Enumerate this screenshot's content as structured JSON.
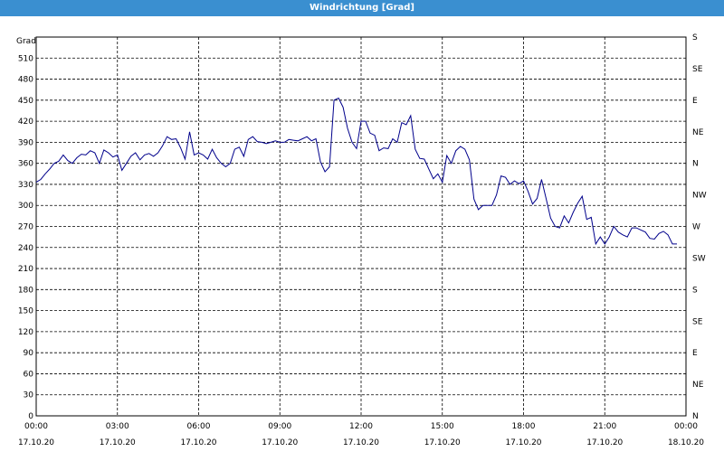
{
  "window": {
    "title": "Windrichtung [Grad]"
  },
  "chart_data": {
    "type": "line",
    "title": "Windrichtung [Grad]",
    "ylabel": "Grad",
    "ylim": [
      0,
      540
    ],
    "yticks": [
      0,
      30,
      60,
      90,
      120,
      150,
      180,
      210,
      240,
      270,
      300,
      330,
      360,
      390,
      420,
      450,
      480,
      510
    ],
    "right_labels": [
      {
        "value": 0,
        "label": "N"
      },
      {
        "value": 45,
        "label": "NE"
      },
      {
        "value": 90,
        "label": "E"
      },
      {
        "value": 135,
        "label": "SE"
      },
      {
        "value": 180,
        "label": "S"
      },
      {
        "value": 225,
        "label": "SW"
      },
      {
        "value": 270,
        "label": "W"
      },
      {
        "value": 315,
        "label": "NW"
      },
      {
        "value": 360,
        "label": "N"
      },
      {
        "value": 405,
        "label": "NE"
      },
      {
        "value": 450,
        "label": "E"
      },
      {
        "value": 495,
        "label": "SE"
      },
      {
        "value": 540,
        "label": "S"
      }
    ],
    "xlim": [
      "17.10.20 00:00",
      "18.10.20 00:00"
    ],
    "xticks": [
      {
        "time": "00:00",
        "date": "17.10.20"
      },
      {
        "time": "03:00",
        "date": "17.10.20"
      },
      {
        "time": "06:00",
        "date": "17.10.20"
      },
      {
        "time": "09:00",
        "date": "17.10.20"
      },
      {
        "time": "12:00",
        "date": "17.10.20"
      },
      {
        "time": "15:00",
        "date": "17.10.20"
      },
      {
        "time": "18:00",
        "date": "17.10.20"
      },
      {
        "time": "21:00",
        "date": "17.10.20"
      },
      {
        "time": "00:00",
        "date": "18.10.20"
      }
    ],
    "grid": true,
    "line_color": "#00008b",
    "series": [
      {
        "x": [
          "17.10.20 00:00",
          "17.10.20 00:10",
          "17.10.20 00:20",
          "17.10.20 00:30",
          "17.10.20 00:40",
          "17.10.20 00:50",
          "17.10.20 01:00",
          "17.10.20 01:10",
          "17.10.20 01:20",
          "17.10.20 01:30",
          "17.10.20 01:40",
          "17.10.20 01:50",
          "17.10.20 02:00",
          "17.10.20 02:10",
          "17.10.20 02:20",
          "17.10.20 02:30",
          "17.10.20 02:40",
          "17.10.20 02:50",
          "17.10.20 03:00",
          "17.10.20 03:10",
          "17.10.20 03:20",
          "17.10.20 03:30",
          "17.10.20 03:40",
          "17.10.20 03:50",
          "17.10.20 04:00",
          "17.10.20 04:10",
          "17.10.20 04:20",
          "17.10.20 04:30",
          "17.10.20 04:40",
          "17.10.20 04:50",
          "17.10.20 05:00",
          "17.10.20 05:10",
          "17.10.20 05:20",
          "17.10.20 05:30",
          "17.10.20 05:40",
          "17.10.20 05:50",
          "17.10.20 06:00",
          "17.10.20 06:10",
          "17.10.20 06:20",
          "17.10.20 06:30",
          "17.10.20 06:40",
          "17.10.20 06:50",
          "17.10.20 07:00",
          "17.10.20 07:10",
          "17.10.20 07:20",
          "17.10.20 07:30",
          "17.10.20 07:40",
          "17.10.20 07:50",
          "17.10.20 08:00",
          "17.10.20 08:10",
          "17.10.20 08:20",
          "17.10.20 08:30",
          "17.10.20 08:40",
          "17.10.20 08:50",
          "17.10.20 09:00",
          "17.10.20 09:10",
          "17.10.20 09:20",
          "17.10.20 09:30",
          "17.10.20 09:40",
          "17.10.20 09:50",
          "17.10.20 10:00",
          "17.10.20 10:10",
          "17.10.20 10:20",
          "17.10.20 10:30",
          "17.10.20 10:40",
          "17.10.20 10:50",
          "17.10.20 11:00",
          "17.10.20 11:10",
          "17.10.20 11:20",
          "17.10.20 11:30",
          "17.10.20 11:40",
          "17.10.20 11:50",
          "17.10.20 12:00",
          "17.10.20 12:10",
          "17.10.20 12:20",
          "17.10.20 12:30",
          "17.10.20 12:40",
          "17.10.20 12:50",
          "17.10.20 13:00",
          "17.10.20 13:10",
          "17.10.20 13:20",
          "17.10.20 13:30",
          "17.10.20 13:40",
          "17.10.20 13:50",
          "17.10.20 14:00",
          "17.10.20 14:10",
          "17.10.20 14:20",
          "17.10.20 14:30",
          "17.10.20 14:40",
          "17.10.20 14:50",
          "17.10.20 15:00",
          "17.10.20 15:10",
          "17.10.20 15:20",
          "17.10.20 15:30",
          "17.10.20 15:40",
          "17.10.20 15:50",
          "17.10.20 16:00",
          "17.10.20 16:10",
          "17.10.20 16:20",
          "17.10.20 16:30",
          "17.10.20 16:40",
          "17.10.20 16:50",
          "17.10.20 17:00",
          "17.10.20 17:10",
          "17.10.20 17:20",
          "17.10.20 17:30",
          "17.10.20 17:40",
          "17.10.20 17:50",
          "17.10.20 18:00",
          "17.10.20 18:10",
          "17.10.20 18:20",
          "17.10.20 18:30",
          "17.10.20 18:40",
          "17.10.20 18:50",
          "17.10.20 19:00",
          "17.10.20 19:10",
          "17.10.20 19:20",
          "17.10.20 19:30",
          "17.10.20 19:40",
          "17.10.20 19:50",
          "17.10.20 20:00",
          "17.10.20 20:10",
          "17.10.20 20:20",
          "17.10.20 20:30",
          "17.10.20 20:40",
          "17.10.20 20:50",
          "17.10.20 21:00",
          "17.10.20 21:10",
          "17.10.20 21:20",
          "17.10.20 21:30",
          "17.10.20 21:40",
          "17.10.20 21:50",
          "17.10.20 22:00",
          "17.10.20 22:10",
          "17.10.20 22:20",
          "17.10.20 22:30",
          "17.10.20 22:40",
          "17.10.20 22:50",
          "17.10.20 23:00",
          "17.10.20 23:10",
          "17.10.20 23:20",
          "17.10.20 23:30",
          "17.10.20 23:40"
        ],
        "values": [
          333,
          337,
          345,
          352,
          360,
          363,
          372,
          364,
          360,
          368,
          373,
          372,
          378,
          375,
          360,
          379,
          375,
          369,
          372,
          350,
          360,
          370,
          375,
          365,
          372,
          374,
          370,
          375,
          385,
          398,
          394,
          395,
          382,
          366,
          405,
          372,
          375,
          372,
          366,
          380,
          368,
          360,
          355,
          360,
          380,
          383,
          370,
          394,
          398,
          391,
          390,
          388,
          390,
          392,
          390,
          390,
          394,
          393,
          392,
          395,
          398,
          392,
          395,
          362,
          348,
          355,
          450,
          453,
          440,
          410,
          390,
          381,
          420,
          420,
          403,
          400,
          378,
          382,
          381,
          395,
          390,
          418,
          415,
          428,
          380,
          367,
          366,
          352,
          338,
          345,
          333,
          371,
          360,
          378,
          384,
          380,
          365,
          309,
          294,
          300,
          300,
          300,
          315,
          342,
          340,
          330,
          335,
          331,
          335,
          320,
          302,
          310,
          337,
          310,
          282,
          270,
          268,
          285,
          275,
          290,
          303,
          313,
          280,
          283,
          245,
          255,
          245,
          255,
          270,
          262,
          258,
          255,
          268,
          268,
          265,
          262,
          253,
          252,
          260,
          263,
          258,
          245,
          245
        ]
      }
    ]
  }
}
